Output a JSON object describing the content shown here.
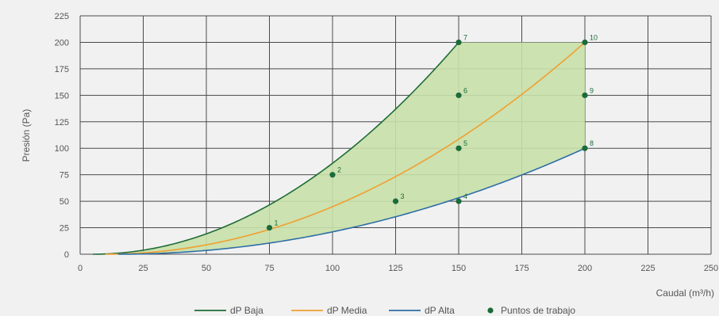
{
  "chart_data": {
    "type": "line",
    "title": "",
    "xlabel": "Caudal (m³/h)",
    "ylabel": "Presión (Pa)",
    "xlim": [
      0,
      250
    ],
    "ylim": [
      0,
      225
    ],
    "xticks": [
      0,
      25,
      50,
      75,
      100,
      125,
      150,
      175,
      200,
      225,
      250
    ],
    "yticks": [
      0,
      25,
      50,
      75,
      100,
      125,
      150,
      175,
      200,
      225
    ],
    "grid": true,
    "legend_position": "bottom",
    "series": [
      {
        "name": "dP Baja",
        "color": "#1e6b35",
        "x": [
          5,
          25,
          50,
          75,
          100,
          125,
          150
        ],
        "y": [
          0,
          5.5,
          22.2,
          50,
          88.9,
          138.9,
          200
        ]
      },
      {
        "name": "dP Media",
        "color": "#f0a030",
        "x": [
          10,
          25,
          50,
          75,
          100,
          125,
          150,
          175,
          200
        ],
        "y": [
          0,
          3.1,
          12.5,
          28.1,
          50,
          78.1,
          112.5,
          153.1,
          200
        ]
      },
      {
        "name": "dP Alta",
        "color": "#2e6ea6",
        "x": [
          15,
          25,
          50,
          75,
          100,
          125,
          150,
          175,
          200
        ],
        "y": [
          0,
          1.6,
          6.3,
          14.1,
          25,
          39.1,
          56.3,
          76.6,
          100
        ]
      }
    ],
    "working_points": {
      "name": "Puntos de trabajo",
      "color": "#1b6b3a",
      "points": [
        {
          "label": "1",
          "x": 75,
          "y": 25
        },
        {
          "label": "2",
          "x": 100,
          "y": 75
        },
        {
          "label": "3",
          "x": 125,
          "y": 50
        },
        {
          "label": "4",
          "x": 150,
          "y": 50
        },
        {
          "label": "5",
          "x": 150,
          "y": 100
        },
        {
          "label": "6",
          "x": 150,
          "y": 150
        },
        {
          "label": "7",
          "x": 150,
          "y": 200
        },
        {
          "label": "8",
          "x": 200,
          "y": 100
        },
        {
          "label": "9",
          "x": 200,
          "y": 150
        },
        {
          "label": "10",
          "x": 200,
          "y": 200
        }
      ]
    },
    "area_fill_color": "#c8e0a8"
  }
}
